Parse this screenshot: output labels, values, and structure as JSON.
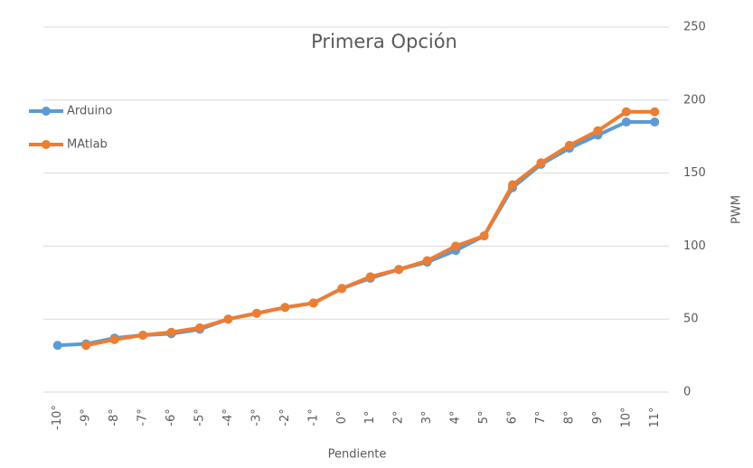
{
  "chart_data": {
    "type": "line",
    "title": "Primera Opción",
    "x_label": "Pendiente",
    "y_label": "PWM",
    "categories": [
      "-10°",
      "-9°",
      "-8°",
      "-7°",
      "-6°",
      "-5°",
      "-4°",
      "-3°",
      "-2°",
      "-1°",
      "0°",
      "1°",
      "2°",
      "3°",
      "4°",
      "5°",
      "6°",
      "7°",
      "8°",
      "9°",
      "10°",
      "11°"
    ],
    "series": [
      {
        "name": "Arduino",
        "color": "#5b9bd5",
        "values": [
          32,
          33,
          37,
          39,
          40,
          43,
          50,
          54,
          58,
          61,
          71,
          78,
          84,
          89,
          97,
          107,
          140,
          156,
          167,
          176,
          185,
          185
        ]
      },
      {
        "name": "MAtlab",
        "color": "#ed7d31",
        "values": [
          null,
          32,
          36,
          39,
          41,
          44,
          50,
          54,
          58,
          61,
          71,
          79,
          84,
          90,
          100,
          107,
          142,
          157,
          169,
          179,
          192,
          192
        ]
      }
    ],
    "ylim": [
      0,
      250
    ],
    "yticks": [
      0,
      50,
      100,
      150,
      200,
      250
    ],
    "grid": true,
    "legend": "left"
  }
}
